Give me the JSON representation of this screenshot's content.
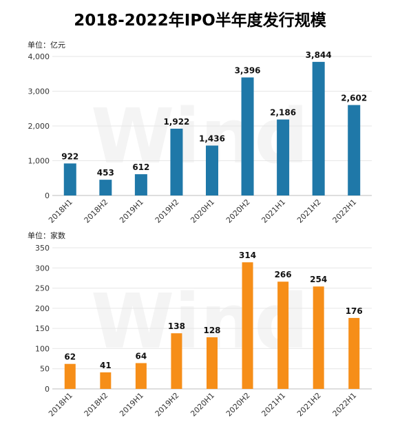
{
  "title": "2018-2022年IPO半年度发行规模",
  "watermark": "Wind",
  "colors": {
    "amount": "#1f78a8",
    "count": "#f68e18",
    "grid": "#e6e6e6",
    "axis": "#bdbdbd"
  },
  "chart_data": [
    {
      "type": "bar",
      "unit": "单位：亿元",
      "categories": [
        "2018H1",
        "2018H2",
        "2019H1",
        "2019H2",
        "2020H1",
        "2020H2",
        "2021H1",
        "2021H2",
        "2022H1"
      ],
      "values": [
        922,
        453,
        612,
        1922,
        1436,
        3396,
        2186,
        3844,
        2602
      ],
      "value_labels": [
        "922",
        "453",
        "612",
        "1,922",
        "1,436",
        "3,396",
        "2,186",
        "3,844",
        "2,602"
      ],
      "yticks": [
        0,
        1000,
        2000,
        3000,
        4000
      ],
      "ytick_labels": [
        "0",
        "1,000",
        "2,000",
        "3,000",
        "4,000"
      ],
      "ylim": [
        0,
        4000
      ],
      "grid": true
    },
    {
      "type": "bar",
      "unit": "单位：家数",
      "categories": [
        "2018H1",
        "2018H2",
        "2019H1",
        "2019H2",
        "2020H1",
        "2020H2",
        "2021H1",
        "2021H2",
        "2022H1"
      ],
      "values": [
        62,
        41,
        64,
        138,
        128,
        314,
        266,
        254,
        176
      ],
      "value_labels": [
        "62",
        "41",
        "64",
        "138",
        "128",
        "314",
        "266",
        "254",
        "176"
      ],
      "yticks": [
        0,
        50,
        100,
        150,
        200,
        250,
        300,
        350
      ],
      "ytick_labels": [
        "0",
        "50",
        "100",
        "150",
        "200",
        "250",
        "300",
        "350"
      ],
      "ylim": [
        0,
        350
      ],
      "grid": true
    }
  ]
}
